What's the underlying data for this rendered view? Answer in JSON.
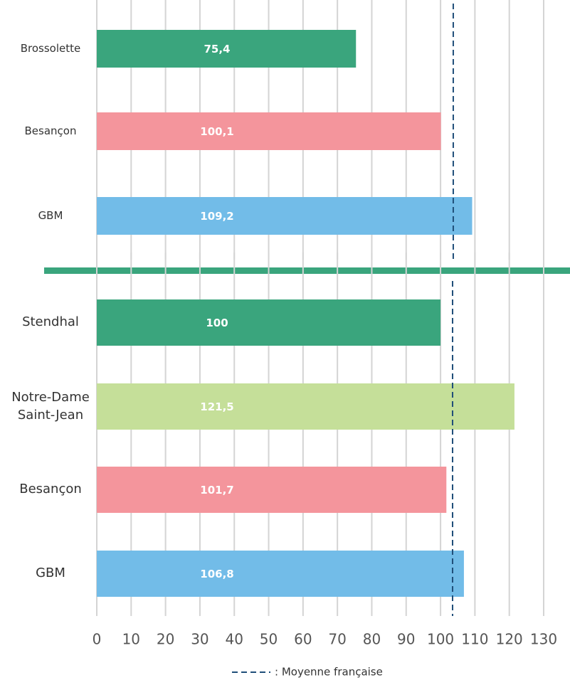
{
  "chart_data": [
    {
      "type": "barh",
      "categories": [
        "Brossolette",
        "Besançon",
        "GBM"
      ],
      "values": [
        75.4,
        100.1,
        109.2
      ],
      "value_labels": [
        "75,4",
        "100,1",
        "109,2"
      ],
      "colors": [
        "#3aa57d",
        "#f4959c",
        "#72bce8"
      ],
      "xlim": [
        0,
        130
      ],
      "reference_line": 103.7,
      "grid": true
    },
    {
      "type": "barh",
      "categories": [
        "Stendhal",
        "Notre-Dame Saint-Jean",
        "Besançon",
        "GBM"
      ],
      "values": [
        100,
        121.5,
        101.7,
        106.8
      ],
      "value_labels": [
        "100",
        "121,5",
        "101,7",
        "106,8"
      ],
      "colors": [
        "#3aa57d",
        "#c5df99",
        "#f4959c",
        "#72bce8"
      ],
      "xlim": [
        0,
        130
      ],
      "xticks": [
        0,
        10,
        20,
        30,
        40,
        50,
        60,
        70,
        80,
        90,
        100,
        110,
        120,
        130
      ],
      "reference_line": 103.5,
      "grid": true
    }
  ],
  "legend": {
    "label": ": Moyenne française"
  }
}
